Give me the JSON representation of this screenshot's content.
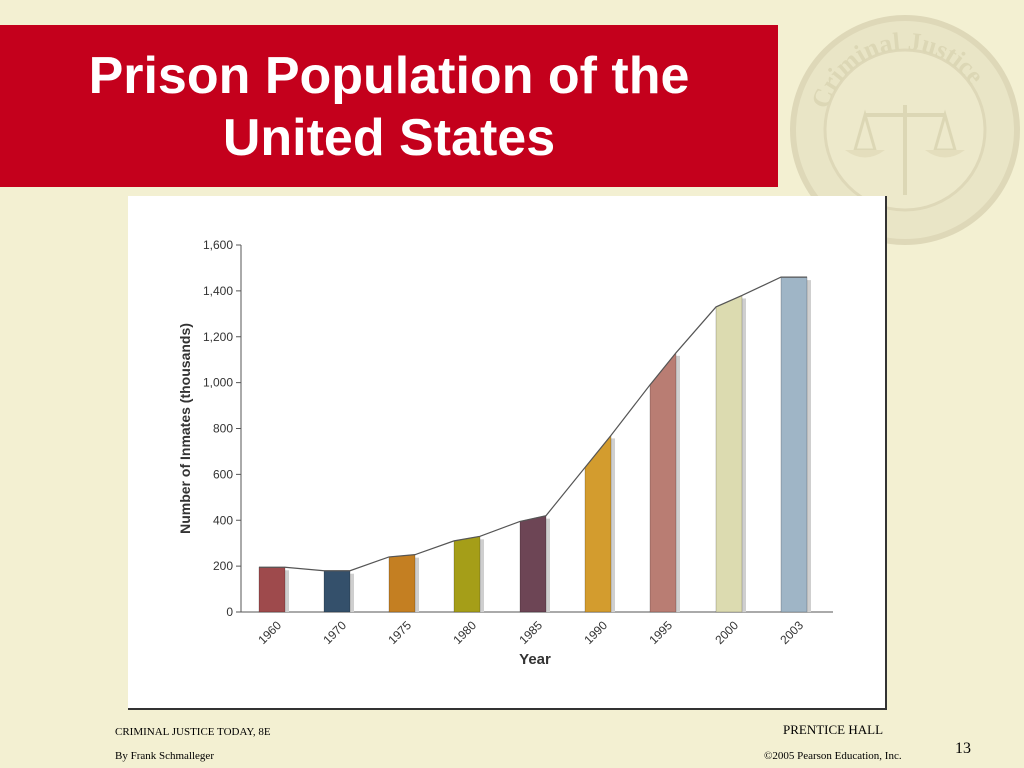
{
  "slide": {
    "title_line1": "Prison Population of the",
    "title_line2": "United States",
    "footer_left_1": "CRIMINAL JUSTICE TODAY, 8E",
    "footer_left_2": "By Frank Schmalleger",
    "footer_right_1": "PRENTICE HALL",
    "footer_right_2": "©2005 Pearson Education, Inc.",
    "page_number": "13",
    "seal_text": "Criminal Justice"
  },
  "chart_data": {
    "type": "bar",
    "title": "",
    "xlabel": "Year",
    "ylabel": "Number of Inmates (thousands)",
    "categories": [
      "1960",
      "1970",
      "1975",
      "1980",
      "1985",
      "1990",
      "1995",
      "2000",
      "2003"
    ],
    "values": [
      195,
      180,
      250,
      330,
      420,
      770,
      1130,
      1380,
      1460
    ],
    "trend_start": [
      195,
      180,
      240,
      310,
      395,
      630,
      990,
      1330,
      1460
    ],
    "ylim": [
      0,
      1600
    ],
    "yticks": [
      "0",
      "200",
      "400",
      "600",
      "800",
      "1,000",
      "1,200",
      "1,400",
      "1,600"
    ],
    "ytick_values": [
      0,
      200,
      400,
      600,
      800,
      1000,
      1200,
      1400,
      1600
    ],
    "colors": [
      "#9e4a4c",
      "#34506b",
      "#c47f22",
      "#a59e18",
      "#6d4555",
      "#d39c2e",
      "#b97d73",
      "#dcdbb0",
      "#9fb5c6"
    ],
    "grid": false
  }
}
